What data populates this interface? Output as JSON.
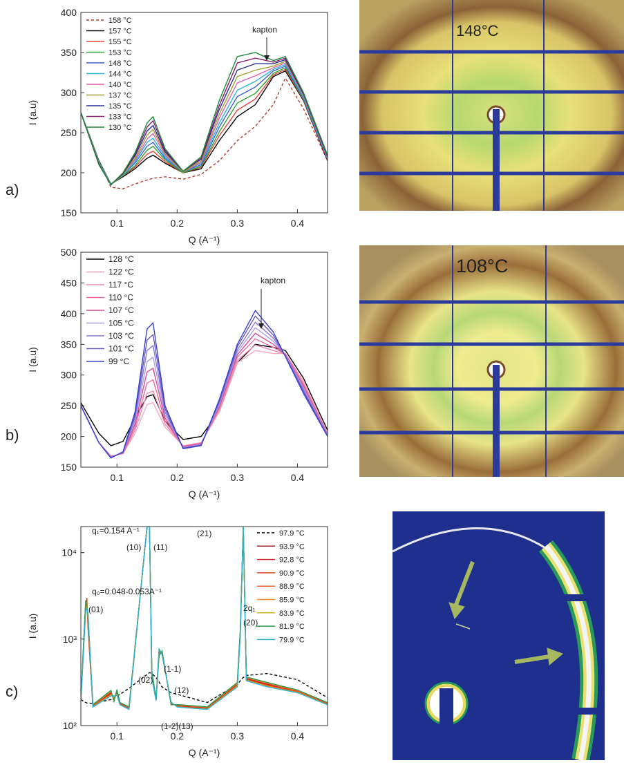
{
  "chart_data": [
    {
      "type": "line",
      "panel": "a)",
      "xlabel": "Q (A⁻¹)",
      "ylabel": "I (a.u)",
      "xlim": [
        0.04,
        0.45
      ],
      "xticks": [
        0.1,
        0.2,
        0.3,
        0.4
      ],
      "ylim": [
        150,
        400
      ],
      "yticks": [
        150,
        200,
        250,
        300,
        350,
        400
      ],
      "annotations": [
        "kapton"
      ],
      "x": [
        0.04,
        0.07,
        0.09,
        0.11,
        0.13,
        0.15,
        0.16,
        0.18,
        0.21,
        0.24,
        0.27,
        0.3,
        0.33,
        0.36,
        0.38,
        0.41,
        0.45
      ],
      "series": [
        {
          "name": "158 °C",
          "color": "#b03a2e",
          "line_style": "dashed",
          "values": [
            275,
            215,
            182,
            180,
            186,
            191,
            193,
            195,
            192,
            198,
            215,
            240,
            258,
            285,
            318,
            280,
            215
          ]
        },
        {
          "name": "157 °C",
          "color": "#000000",
          "values": [
            275,
            215,
            186,
            195,
            205,
            218,
            222,
            212,
            200,
            205,
            240,
            270,
            285,
            320,
            327,
            290,
            215
          ]
        },
        {
          "name": "155 °C",
          "color": "#e8403a",
          "values": [
            275,
            214,
            186,
            196,
            207,
            223,
            227,
            214,
            200,
            207,
            246,
            278,
            292,
            322,
            329,
            291,
            216
          ]
        },
        {
          "name": "153 °C",
          "color": "#2ca02c",
          "values": [
            275,
            214,
            186,
            196,
            209,
            228,
            233,
            216,
            200,
            208,
            251,
            287,
            299,
            324,
            331,
            292,
            217
          ]
        },
        {
          "name": "148 °C",
          "color": "#3b5fd9",
          "values": [
            275,
            213,
            186,
            197,
            212,
            233,
            238,
            218,
            201,
            210,
            257,
            295,
            307,
            327,
            333,
            293,
            217
          ]
        },
        {
          "name": "144 °C",
          "color": "#2bb5d9",
          "values": [
            275,
            213,
            186,
            197,
            214,
            238,
            243,
            220,
            201,
            212,
            262,
            303,
            314,
            329,
            335,
            294,
            218
          ]
        },
        {
          "name": "140 °C",
          "color": "#e05fb0",
          "values": [
            275,
            212,
            185,
            198,
            216,
            242,
            249,
            222,
            201,
            213,
            268,
            312,
            321,
            331,
            337,
            296,
            219
          ]
        },
        {
          "name": "137 °C",
          "color": "#a0a030",
          "values": [
            275,
            212,
            185,
            198,
            218,
            247,
            254,
            224,
            201,
            215,
            273,
            320,
            328,
            333,
            339,
            297,
            220
          ]
        },
        {
          "name": "135 °C",
          "color": "#2a2a9a",
          "values": [
            275,
            211,
            185,
            199,
            221,
            252,
            259,
            226,
            202,
            217,
            279,
            328,
            336,
            336,
            341,
            298,
            220
          ]
        },
        {
          "name": "133 °C",
          "color": "#8a1a6a",
          "values": [
            275,
            211,
            185,
            199,
            223,
            257,
            265,
            228,
            202,
            218,
            284,
            337,
            343,
            338,
            343,
            299,
            221
          ]
        },
        {
          "name": "130 °C",
          "color": "#1a8a3a",
          "values": [
            275,
            210,
            185,
            200,
            225,
            262,
            270,
            230,
            202,
            220,
            290,
            345,
            350,
            340,
            345,
            300,
            222
          ]
        }
      ]
    },
    {
      "type": "line",
      "panel": "b)",
      "xlabel": "Q (A⁻¹)",
      "ylabel": "I (a.u)",
      "xlim": [
        0.04,
        0.45
      ],
      "xticks": [
        0.1,
        0.2,
        0.3,
        0.4
      ],
      "ylim": [
        150,
        500
      ],
      "yticks": [
        150,
        200,
        250,
        300,
        350,
        400,
        450,
        500
      ],
      "annotations": [
        "kapton"
      ],
      "x": [
        0.04,
        0.07,
        0.09,
        0.11,
        0.13,
        0.15,
        0.16,
        0.18,
        0.21,
        0.24,
        0.27,
        0.3,
        0.33,
        0.36,
        0.38,
        0.41,
        0.45
      ],
      "series": [
        {
          "name": "128 °C",
          "color": "#000000",
          "values": [
            255,
            205,
            185,
            192,
            230,
            265,
            268,
            225,
            195,
            200,
            240,
            320,
            350,
            345,
            340,
            295,
            210
          ]
        },
        {
          "name": "122 °C",
          "color": "#f4a6c0",
          "values": [
            250,
            190,
            168,
            172,
            205,
            252,
            255,
            215,
            185,
            190,
            240,
            320,
            340,
            335,
            335,
            290,
            205
          ]
        },
        {
          "name": "117 °C",
          "color": "#f08ab0",
          "values": [
            250,
            190,
            168,
            172,
            210,
            270,
            274,
            220,
            184,
            189,
            243,
            324,
            349,
            340,
            334,
            287,
            204
          ]
        },
        {
          "name": "110 °C",
          "color": "#e86aa0",
          "values": [
            250,
            190,
            167,
            173,
            215,
            287,
            292,
            225,
            184,
            189,
            246,
            329,
            359,
            345,
            334,
            284,
            204
          ]
        },
        {
          "name": "107 °C",
          "color": "#d84a90",
          "values": [
            250,
            190,
            167,
            173,
            220,
            305,
            311,
            230,
            183,
            188,
            249,
            333,
            368,
            350,
            333,
            281,
            203
          ]
        },
        {
          "name": "105 °C",
          "color": "#a8a0e8",
          "values": [
            250,
            190,
            166,
            174,
            225,
            322,
            329,
            235,
            182,
            187,
            251,
            337,
            377,
            355,
            332,
            279,
            202
          ]
        },
        {
          "name": "103 °C",
          "color": "#8878d8",
          "values": [
            250,
            190,
            166,
            174,
            230,
            340,
            348,
            240,
            181,
            186,
            254,
            341,
            386,
            360,
            331,
            276,
            201
          ]
        },
        {
          "name": "101 °C",
          "color": "#6a58b8",
          "values": [
            250,
            190,
            165,
            175,
            235,
            357,
            366,
            245,
            181,
            186,
            257,
            346,
            396,
            365,
            331,
            273,
            201
          ]
        },
        {
          "name": "99 °C",
          "color": "#3a40d0",
          "values": [
            250,
            190,
            165,
            175,
            240,
            375,
            385,
            250,
            180,
            185,
            260,
            350,
            405,
            370,
            330,
            270,
            200
          ]
        }
      ]
    },
    {
      "type": "line",
      "panel": "c)",
      "xlabel": "Q (A⁻¹)",
      "ylabel": "I (a.u)",
      "log_y": true,
      "xlim": [
        0.04,
        0.45
      ],
      "xticks": [
        0.1,
        0.2,
        0.3,
        0.4
      ],
      "ylim": [
        100,
        20000
      ],
      "yticks": [
        {
          "value": 100,
          "label": "10²"
        },
        {
          "value": 1000,
          "label": "10³"
        },
        {
          "value": 10000,
          "label": "10⁴"
        }
      ],
      "annotations": [
        "q₁=0.154 A⁻¹",
        "(10)",
        "(11)",
        "(21)",
        "q₀=0.048-0.053A⁻¹",
        "(01)",
        "2q₁",
        "(20)",
        "(02)",
        "(1-1)",
        "(12)",
        "(1-2)(13)"
      ],
      "x": [
        0.04,
        0.048,
        0.05,
        0.052,
        0.06,
        0.09,
        0.095,
        0.1,
        0.105,
        0.12,
        0.15,
        0.154,
        0.158,
        0.165,
        0.17,
        0.175,
        0.19,
        0.2,
        0.25,
        0.3,
        0.305,
        0.31,
        0.315,
        0.35,
        0.4,
        0.45
      ],
      "series": [
        {
          "name": "97.9 °C",
          "color": "#000000",
          "line_style": "dashed",
          "values": [
            200,
            185,
            183,
            182,
            180,
            200,
            210,
            220,
            230,
            270,
            390,
            410,
            400,
            360,
            320,
            280,
            240,
            230,
            185,
            300,
            330,
            360,
            380,
            400,
            340,
            210
          ]
        },
        {
          "name": "93.9 °C",
          "color": "#a02a20",
          "values": [
            200,
            2500,
            2800,
            1500,
            170,
            240,
            200,
            240,
            180,
            160,
            20000,
            20000,
            400,
            200,
            700,
            700,
            180,
            170,
            160,
            300,
            1200,
            20000,
            350,
            300,
            250,
            180
          ]
        },
        {
          "name": "92.8 °C",
          "color": "#d62020",
          "values": [
            198,
            2600,
            2900,
            1400,
            172,
            235,
            205,
            245,
            178,
            158,
            20000,
            20000,
            390,
            198,
            720,
            690,
            182,
            168,
            158,
            295,
            1180,
            20000,
            345,
            295,
            248,
            178
          ]
        },
        {
          "name": "90.9 °C",
          "color": "#e04020",
          "values": [
            202,
            2400,
            3000,
            1300,
            168,
            245,
            198,
            250,
            182,
            162,
            20000,
            20000,
            410,
            202,
            680,
            710,
            178,
            172,
            162,
            305,
            1220,
            20000,
            355,
            305,
            252,
            182
          ]
        },
        {
          "name": "88.9 °C",
          "color": "#e86020",
          "values": [
            196,
            2300,
            2700,
            1600,
            166,
            230,
            210,
            235,
            176,
            156,
            20000,
            20000,
            380,
            196,
            740,
            680,
            184,
            166,
            156,
            290,
            1150,
            20000,
            340,
            290,
            245,
            176
          ]
        },
        {
          "name": "85.9 °C",
          "color": "#f08a30",
          "values": [
            204,
            2700,
            2600,
            1700,
            174,
            250,
            195,
            255,
            184,
            164,
            20000,
            20000,
            420,
            204,
            660,
            720,
            176,
            174,
            164,
            310,
            1250,
            20000,
            360,
            310,
            255,
            184
          ]
        },
        {
          "name": "83.9 °C",
          "color": "#c8b020",
          "values": [
            195,
            2200,
            2500,
            1800,
            165,
            225,
            215,
            230,
            175,
            155,
            20000,
            20000,
            370,
            195,
            760,
            670,
            186,
            165,
            155,
            285,
            1100,
            20000,
            335,
            285,
            242,
            175
          ]
        },
        {
          "name": "81.9 °C",
          "color": "#2a9a4a",
          "values": [
            205,
            2800,
            2400,
            1900,
            175,
            255,
            190,
            260,
            185,
            165,
            20000,
            20000,
            430,
            205,
            640,
            730,
            174,
            175,
            165,
            315,
            1280,
            20000,
            365,
            315,
            258,
            185
          ]
        },
        {
          "name": "79.9 °C",
          "color": "#30b0d0",
          "values": [
            194,
            2100,
            2300,
            2000,
            164,
            220,
            220,
            225,
            174,
            154,
            20000,
            20000,
            360,
            194,
            780,
            660,
            188,
            164,
            154,
            280,
            1080,
            20000,
            330,
            280,
            240,
            174
          ]
        }
      ]
    }
  ],
  "images": [
    {
      "label": "148°C"
    },
    {
      "label": "108°C"
    }
  ]
}
